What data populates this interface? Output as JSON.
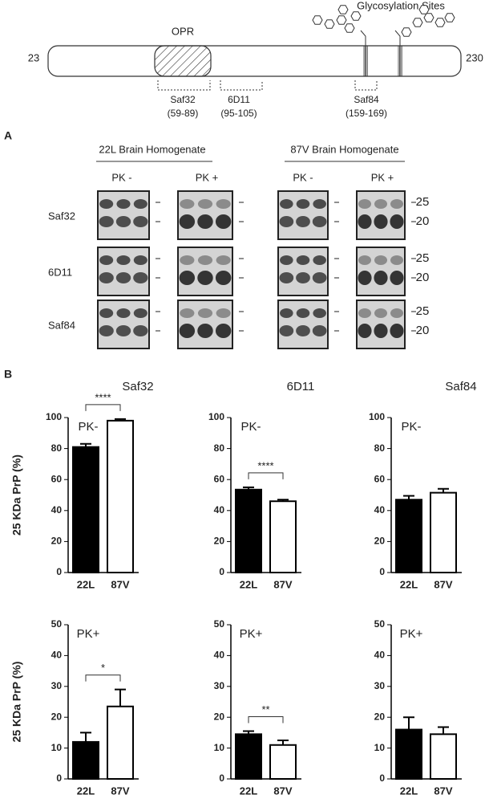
{
  "diagram": {
    "glycosylation": "Glycosylation Sites",
    "region": "OPR",
    "start": "23",
    "end": "230",
    "epitopes": [
      {
        "name": "Saf32",
        "range": "(59-89)"
      },
      {
        "name": "6D11",
        "range": "(95-105)"
      },
      {
        "name": "Saf84",
        "range": "(159-169)"
      }
    ]
  },
  "blots": {
    "panel": "A",
    "groups": [
      {
        "title": "22L Brain Homogenate",
        "lanes": [
          "PK -",
          "PK +"
        ]
      },
      {
        "title": "87V Brain Homogenate",
        "lanes": [
          "PK -",
          "PK +"
        ]
      }
    ],
    "rows": [
      "Saf32",
      "6D11",
      "Saf84"
    ],
    "markers": [
      "25",
      "20"
    ]
  },
  "bars_panel": "B",
  "chart_data": [
    {
      "type": "bar",
      "title": "Saf32",
      "annotation": "PK-",
      "ylabel": "25 KDa PrP (%)",
      "categories": [
        "22L",
        "87V"
      ],
      "values": [
        81,
        98
      ],
      "errors": [
        2,
        1
      ],
      "colors": [
        "#000000",
        "#ffffff"
      ],
      "ylim": [
        0,
        100
      ],
      "yticks": [
        0,
        20,
        40,
        60,
        80,
        100
      ],
      "significance": "****"
    },
    {
      "type": "bar",
      "title": "6D11",
      "annotation": "PK-",
      "categories": [
        "22L",
        "87V"
      ],
      "values": [
        53.5,
        46
      ],
      "errors": [
        1.5,
        1
      ],
      "colors": [
        "#000000",
        "#ffffff"
      ],
      "ylim": [
        0,
        100
      ],
      "yticks": [
        0,
        20,
        40,
        60,
        80,
        100
      ],
      "significance": "****"
    },
    {
      "type": "bar",
      "title": "Saf84",
      "annotation": "PK-",
      "categories": [
        "22L",
        "87V"
      ],
      "values": [
        47,
        51.5
      ],
      "errors": [
        2.5,
        2.5
      ],
      "colors": [
        "#000000",
        "#ffffff"
      ],
      "ylim": [
        0,
        100
      ],
      "yticks": [
        0,
        20,
        40,
        60,
        80,
        100
      ]
    },
    {
      "type": "bar",
      "annotation": "PK+",
      "ylabel": "25 KDa PrP (%)",
      "categories": [
        "22L",
        "87V"
      ],
      "values": [
        12,
        23.5
      ],
      "errors": [
        3,
        5.5
      ],
      "colors": [
        "#000000",
        "#ffffff"
      ],
      "ylim": [
        0,
        50
      ],
      "yticks": [
        0,
        10,
        20,
        30,
        40,
        50
      ],
      "significance": "*"
    },
    {
      "type": "bar",
      "annotation": "PK+",
      "categories": [
        "22L",
        "87V"
      ],
      "values": [
        14.5,
        11
      ],
      "errors": [
        1,
        1.5
      ],
      "colors": [
        "#000000",
        "#ffffff"
      ],
      "ylim": [
        0,
        50
      ],
      "yticks": [
        0,
        10,
        20,
        30,
        40,
        50
      ],
      "significance": "**"
    },
    {
      "type": "bar",
      "annotation": "PK+",
      "categories": [
        "22L",
        "87V"
      ],
      "values": [
        16,
        14.5
      ],
      "errors": [
        4,
        2.3
      ],
      "colors": [
        "#000000",
        "#ffffff"
      ],
      "ylim": [
        0,
        50
      ],
      "yticks": [
        0,
        10,
        20,
        30,
        40,
        50
      ]
    }
  ]
}
